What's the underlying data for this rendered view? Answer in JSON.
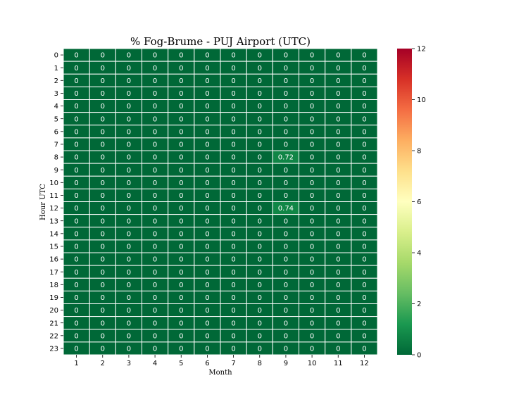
{
  "chart_data": {
    "type": "heatmap",
    "title": "% Fog-Brume - PUJ Airport (UTC)",
    "xlabel": "Month",
    "ylabel": "Hour UTC",
    "x_categories": [
      "1",
      "2",
      "3",
      "4",
      "5",
      "6",
      "7",
      "8",
      "9",
      "10",
      "11",
      "12"
    ],
    "y_categories": [
      "0",
      "1",
      "2",
      "3",
      "4",
      "5",
      "6",
      "7",
      "8",
      "9",
      "10",
      "11",
      "12",
      "13",
      "14",
      "15",
      "16",
      "17",
      "18",
      "19",
      "20",
      "21",
      "22",
      "23"
    ],
    "values": [
      [
        0,
        0,
        0,
        0,
        0,
        0,
        0,
        0,
        0,
        0,
        0,
        0
      ],
      [
        0,
        0,
        0,
        0,
        0,
        0,
        0,
        0,
        0,
        0,
        0,
        0
      ],
      [
        0,
        0,
        0,
        0,
        0,
        0,
        0,
        0,
        0,
        0,
        0,
        0
      ],
      [
        0,
        0,
        0,
        0,
        0,
        0,
        0,
        0,
        0,
        0,
        0,
        0
      ],
      [
        0,
        0,
        0,
        0,
        0,
        0,
        0,
        0,
        0,
        0,
        0,
        0
      ],
      [
        0,
        0,
        0,
        0,
        0,
        0,
        0,
        0,
        0,
        0,
        0,
        0
      ],
      [
        0,
        0,
        0,
        0,
        0,
        0,
        0,
        0,
        0,
        0,
        0,
        0
      ],
      [
        0,
        0,
        0,
        0,
        0,
        0,
        0,
        0,
        0,
        0,
        0,
        0
      ],
      [
        0,
        0,
        0,
        0,
        0,
        0,
        0,
        0,
        0.72,
        0,
        0,
        0
      ],
      [
        0,
        0,
        0,
        0,
        0,
        0,
        0,
        0,
        0,
        0,
        0,
        0
      ],
      [
        0,
        0,
        0,
        0,
        0,
        0,
        0,
        0,
        0,
        0,
        0,
        0
      ],
      [
        0,
        0,
        0,
        0,
        0,
        0,
        0,
        0,
        0,
        0,
        0,
        0
      ],
      [
        0,
        0,
        0,
        0,
        0,
        0,
        0,
        0,
        0.74,
        0,
        0,
        0
      ],
      [
        0,
        0,
        0,
        0,
        0,
        0,
        0,
        0,
        0,
        0,
        0,
        0
      ],
      [
        0,
        0,
        0,
        0,
        0,
        0,
        0,
        0,
        0,
        0,
        0,
        0
      ],
      [
        0,
        0,
        0,
        0,
        0,
        0,
        0,
        0,
        0,
        0,
        0,
        0
      ],
      [
        0,
        0,
        0,
        0,
        0,
        0,
        0,
        0,
        0,
        0,
        0,
        0
      ],
      [
        0,
        0,
        0,
        0,
        0,
        0,
        0,
        0,
        0,
        0,
        0,
        0
      ],
      [
        0,
        0,
        0,
        0,
        0,
        0,
        0,
        0,
        0,
        0,
        0,
        0
      ],
      [
        0,
        0,
        0,
        0,
        0,
        0,
        0,
        0,
        0,
        0,
        0,
        0
      ],
      [
        0,
        0,
        0,
        0,
        0,
        0,
        0,
        0,
        0,
        0,
        0,
        0
      ],
      [
        0,
        0,
        0,
        0,
        0,
        0,
        0,
        0,
        0,
        0,
        0,
        0
      ],
      [
        0,
        0,
        0,
        0,
        0,
        0,
        0,
        0,
        0,
        0,
        0,
        0
      ],
      [
        0,
        0,
        0,
        0,
        0,
        0,
        0,
        0,
        0,
        0,
        0,
        0
      ]
    ],
    "colorbar": {
      "range": [
        0,
        12
      ],
      "ticks": [
        0,
        2,
        4,
        6,
        8,
        10,
        12
      ],
      "colormap": "RdYlGn_r",
      "stops": [
        "#006837",
        "#1a9850",
        "#66bd63",
        "#a6d96a",
        "#d9ef8b",
        "#ffffbf",
        "#fee08b",
        "#fdae61",
        "#f46d43",
        "#d73027",
        "#a50026"
      ]
    },
    "grid_line_color": "#ffffff",
    "annotation_color": "#ffffff"
  }
}
